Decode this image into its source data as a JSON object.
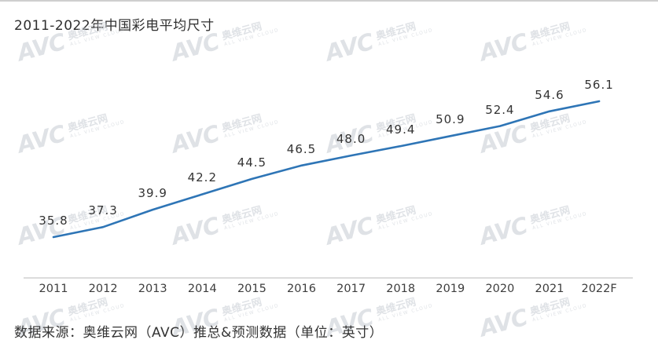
{
  "page": {
    "title": "2011-2022年中国彩电平均尺寸",
    "source_note": "数据来源：奥维云网（AVC）推总&预测数据（单位：英寸）"
  },
  "watermark": {
    "logo": "AVC",
    "name": "奥维云网",
    "subtext": "ALL VIEW CLOUD"
  },
  "chart_data": {
    "type": "line",
    "title": "2011-2022年中国彩电平均尺寸",
    "unit": "英寸",
    "categories": [
      "2011",
      "2012",
      "2013",
      "2014",
      "2015",
      "2016",
      "2017",
      "2018",
      "2019",
      "2020",
      "2021",
      "2022F"
    ],
    "values": [
      35.8,
      37.3,
      39.9,
      42.2,
      44.5,
      46.5,
      48.0,
      49.4,
      50.9,
      52.4,
      54.6,
      56.1
    ],
    "point_labels": [
      "35.8",
      "37.3",
      "39.9",
      "42.2",
      "44.5",
      "46.5",
      "48.0",
      "49.4",
      "50.9",
      "52.4",
      "54.6",
      "56.1"
    ],
    "xlabel": "",
    "ylabel": "",
    "y_axis_visible": false,
    "grid": false,
    "legend": false,
    "line_color": "#2e75b6",
    "label_color": "#333333",
    "axis_color": "#dcdcdc"
  }
}
